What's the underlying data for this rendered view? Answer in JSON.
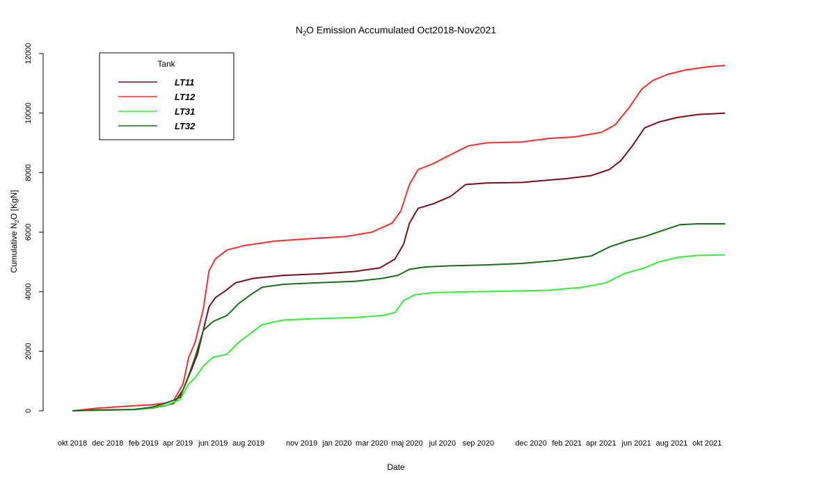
{
  "chart_data": {
    "type": "line",
    "title_main": "N",
    "title_sub": "2",
    "title_rest": "O Emission Accumulated Oct2018-Nov2021",
    "xlabel": "Date",
    "ylabel_pre": "Cumulative N",
    "ylabel_sub": "2",
    "ylabel_post": "O [KgN]",
    "ylim": [
      0,
      12000
    ],
    "yticks": [
      0,
      2000,
      4000,
      6000,
      8000,
      10000,
      12000
    ],
    "x_start": "2018-10-01",
    "x_end": "2021-11-01",
    "xticks": [
      {
        "date": "2018-10-01",
        "label": "okt 2018"
      },
      {
        "date": "2018-12-01",
        "label": "dec 2018"
      },
      {
        "date": "2019-02-01",
        "label": "feb 2019"
      },
      {
        "date": "2019-04-01",
        "label": "apr 2019"
      },
      {
        "date": "2019-06-01",
        "label": "jun 2019"
      },
      {
        "date": "2019-08-01",
        "label": "aug 2019"
      },
      {
        "date": "2019-11-01",
        "label": "nov 2019"
      },
      {
        "date": "2020-01-01",
        "label": "jan 2020"
      },
      {
        "date": "2020-03-01",
        "label": "mar 2020"
      },
      {
        "date": "2020-05-01",
        "label": "maj 2020"
      },
      {
        "date": "2020-07-01",
        "label": "jul 2020"
      },
      {
        "date": "2020-09-01",
        "label": "sep 2020"
      },
      {
        "date": "2020-12-01",
        "label": "dec 2020"
      },
      {
        "date": "2021-02-01",
        "label": "feb 2021"
      },
      {
        "date": "2021-04-01",
        "label": "apr 2021"
      },
      {
        "date": "2021-06-01",
        "label": "jun 2021"
      },
      {
        "date": "2021-08-01",
        "label": "aug 2021"
      },
      {
        "date": "2021-10-01",
        "label": "okt 2021"
      }
    ],
    "legend": {
      "title": "Tank",
      "position": "top-left"
    },
    "grid": false,
    "series": [
      {
        "name": "LT11",
        "color": "#7a0d1a",
        "points": [
          [
            "2018-10-01",
            0
          ],
          [
            "2018-11-15",
            20
          ],
          [
            "2019-01-15",
            40
          ],
          [
            "2019-02-15",
            90
          ],
          [
            "2019-03-10",
            170
          ],
          [
            "2019-03-25",
            250
          ],
          [
            "2019-04-10",
            700
          ],
          [
            "2019-04-25",
            1400
          ],
          [
            "2019-05-05",
            1900
          ],
          [
            "2019-05-15",
            2700
          ],
          [
            "2019-05-25",
            3500
          ],
          [
            "2019-06-05",
            3800
          ],
          [
            "2019-06-20",
            4000
          ],
          [
            "2019-07-10",
            4300
          ],
          [
            "2019-08-10",
            4450
          ],
          [
            "2019-10-01",
            4550
          ],
          [
            "2019-12-01",
            4600
          ],
          [
            "2020-02-01",
            4680
          ],
          [
            "2020-03-15",
            4800
          ],
          [
            "2020-04-10",
            5100
          ],
          [
            "2020-04-25",
            5600
          ],
          [
            "2020-05-05",
            6300
          ],
          [
            "2020-05-20",
            6800
          ],
          [
            "2020-06-15",
            6950
          ],
          [
            "2020-07-15",
            7200
          ],
          [
            "2020-08-10",
            7600
          ],
          [
            "2020-09-15",
            7650
          ],
          [
            "2020-11-15",
            7670
          ],
          [
            "2020-12-15",
            7720
          ],
          [
            "2021-02-01",
            7800
          ],
          [
            "2021-03-15",
            7900
          ],
          [
            "2021-04-15",
            8100
          ],
          [
            "2021-05-05",
            8400
          ],
          [
            "2021-05-25",
            8900
          ],
          [
            "2021-06-15",
            9500
          ],
          [
            "2021-07-10",
            9700
          ],
          [
            "2021-08-10",
            9850
          ],
          [
            "2021-09-15",
            9950
          ],
          [
            "2021-11-01",
            10000
          ]
        ]
      },
      {
        "name": "LT12",
        "color": "#ff2a2a",
        "points": [
          [
            "2018-10-01",
            0
          ],
          [
            "2018-11-15",
            90
          ],
          [
            "2019-01-15",
            170
          ],
          [
            "2019-02-15",
            200
          ],
          [
            "2019-03-10",
            260
          ],
          [
            "2019-03-25",
            350
          ],
          [
            "2019-04-10",
            900
          ],
          [
            "2019-04-20",
            1800
          ],
          [
            "2019-05-01",
            2300
          ],
          [
            "2019-05-15",
            3400
          ],
          [
            "2019-05-25",
            4700
          ],
          [
            "2019-06-05",
            5100
          ],
          [
            "2019-06-25",
            5400
          ],
          [
            "2019-07-25",
            5550
          ],
          [
            "2019-09-15",
            5700
          ],
          [
            "2019-11-15",
            5780
          ],
          [
            "2020-01-15",
            5850
          ],
          [
            "2020-03-01",
            6000
          ],
          [
            "2020-04-05",
            6300
          ],
          [
            "2020-04-20",
            6700
          ],
          [
            "2020-05-05",
            7600
          ],
          [
            "2020-05-20",
            8100
          ],
          [
            "2020-06-15",
            8300
          ],
          [
            "2020-07-15",
            8600
          ],
          [
            "2020-08-15",
            8900
          ],
          [
            "2020-09-15",
            9000
          ],
          [
            "2020-11-15",
            9030
          ],
          [
            "2021-01-01",
            9150
          ],
          [
            "2021-02-15",
            9200
          ],
          [
            "2021-04-01",
            9350
          ],
          [
            "2021-04-25",
            9600
          ],
          [
            "2021-05-20",
            10200
          ],
          [
            "2021-06-10",
            10800
          ],
          [
            "2021-06-30",
            11100
          ],
          [
            "2021-07-25",
            11300
          ],
          [
            "2021-08-25",
            11450
          ],
          [
            "2021-10-01",
            11550
          ],
          [
            "2021-11-01",
            11600
          ]
        ]
      },
      {
        "name": "LT31",
        "color": "#33ee33",
        "points": [
          [
            "2018-10-01",
            0
          ],
          [
            "2018-11-15",
            30
          ],
          [
            "2019-01-15",
            40
          ],
          [
            "2019-02-15",
            100
          ],
          [
            "2019-03-15",
            200
          ],
          [
            "2019-04-05",
            380
          ],
          [
            "2019-04-20",
            900
          ],
          [
            "2019-05-01",
            1100
          ],
          [
            "2019-05-15",
            1500
          ],
          [
            "2019-06-01",
            1800
          ],
          [
            "2019-06-25",
            1900
          ],
          [
            "2019-07-15",
            2300
          ],
          [
            "2019-08-05",
            2600
          ],
          [
            "2019-08-25",
            2900
          ],
          [
            "2019-10-01",
            3050
          ],
          [
            "2019-12-01",
            3100
          ],
          [
            "2020-02-01",
            3130
          ],
          [
            "2020-03-20",
            3200
          ],
          [
            "2020-04-10",
            3300
          ],
          [
            "2020-04-25",
            3700
          ],
          [
            "2020-05-15",
            3900
          ],
          [
            "2020-06-15",
            3970
          ],
          [
            "2020-08-15",
            4000
          ],
          [
            "2020-11-01",
            4020
          ],
          [
            "2021-01-01",
            4050
          ],
          [
            "2021-03-01",
            4150
          ],
          [
            "2021-04-10",
            4300
          ],
          [
            "2021-05-10",
            4600
          ],
          [
            "2021-06-15",
            4800
          ],
          [
            "2021-07-10",
            5000
          ],
          [
            "2021-08-10",
            5150
          ],
          [
            "2021-09-15",
            5220
          ],
          [
            "2021-11-01",
            5240
          ]
        ]
      },
      {
        "name": "LT32",
        "color": "#1a6b1a",
        "points": [
          [
            "2018-10-01",
            0
          ],
          [
            "2018-11-15",
            30
          ],
          [
            "2019-01-15",
            45
          ],
          [
            "2019-02-15",
            120
          ],
          [
            "2019-03-15",
            280
          ],
          [
            "2019-04-05",
            450
          ],
          [
            "2019-04-20",
            1200
          ],
          [
            "2019-05-01",
            1800
          ],
          [
            "2019-05-15",
            2700
          ],
          [
            "2019-06-01",
            3000
          ],
          [
            "2019-06-25",
            3200
          ],
          [
            "2019-07-15",
            3600
          ],
          [
            "2019-08-05",
            3900
          ],
          [
            "2019-08-25",
            4150
          ],
          [
            "2019-10-01",
            4250
          ],
          [
            "2019-12-01",
            4300
          ],
          [
            "2020-02-01",
            4350
          ],
          [
            "2020-03-20",
            4450
          ],
          [
            "2020-04-15",
            4550
          ],
          [
            "2020-05-05",
            4750
          ],
          [
            "2020-06-01",
            4830
          ],
          [
            "2020-07-15",
            4870
          ],
          [
            "2020-09-15",
            4900
          ],
          [
            "2020-11-15",
            4950
          ],
          [
            "2021-01-15",
            5050
          ],
          [
            "2021-03-15",
            5200
          ],
          [
            "2021-04-15",
            5500
          ],
          [
            "2021-05-15",
            5700
          ],
          [
            "2021-06-15",
            5850
          ],
          [
            "2021-07-15",
            6050
          ],
          [
            "2021-08-15",
            6250
          ],
          [
            "2021-09-15",
            6280
          ],
          [
            "2021-11-01",
            6280
          ]
        ]
      }
    ]
  }
}
